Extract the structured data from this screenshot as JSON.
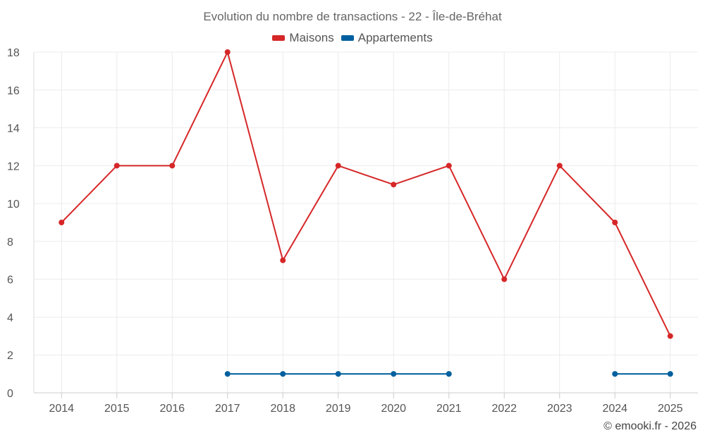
{
  "chart_data": {
    "type": "line",
    "title": "Evolution du nombre de transactions - 22 - Île-de-Bréhat",
    "x": [
      "2014",
      "2015",
      "2016",
      "2017",
      "2018",
      "2019",
      "2020",
      "2021",
      "2022",
      "2023",
      "2024",
      "2025"
    ],
    "series": [
      {
        "name": "Maisons",
        "color": "#d62728",
        "values": [
          9,
          12,
          12,
          18,
          7,
          12,
          11,
          12,
          6,
          12,
          9,
          3
        ]
      },
      {
        "name": "Appartements",
        "color": "#00609f",
        "values": [
          null,
          null,
          null,
          1,
          1,
          1,
          1,
          1,
          null,
          null,
          1,
          1
        ]
      }
    ],
    "ylim": [
      0,
      18
    ],
    "yticks": [
      "0",
      "2",
      "4",
      "6",
      "8",
      "10",
      "12",
      "14",
      "16",
      "18"
    ],
    "grid": true,
    "legend": "top-center"
  },
  "credit": "© emooki.fr - 2026"
}
